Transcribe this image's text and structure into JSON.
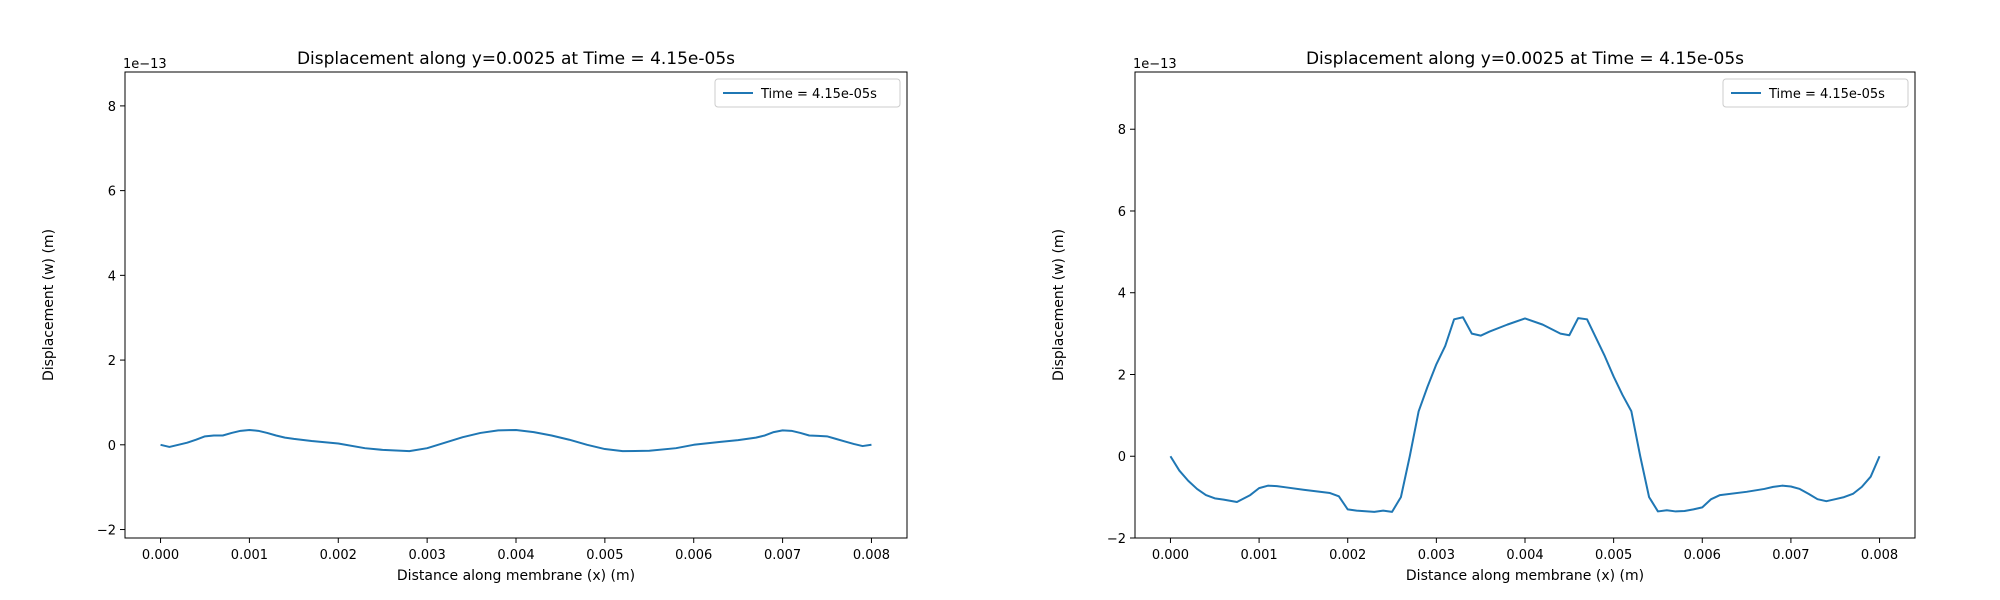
{
  "chart_data": [
    {
      "type": "line",
      "title": "Displacement along y=0.0025 at Time = 4.15e-05s",
      "xlabel": "Distance along membrane (x) (m)",
      "ylabel": "Displacement (w) (m)",
      "y_offset_text": "1e−13",
      "xlim": [
        -0.0004,
        0.0084
      ],
      "ylim": [
        -2.2,
        8.8
      ],
      "xticks": [
        0.0,
        0.001,
        0.002,
        0.003,
        0.004,
        0.005,
        0.006,
        0.007,
        0.008
      ],
      "xtick_labels": [
        "0.000",
        "0.001",
        "0.002",
        "0.003",
        "0.004",
        "0.005",
        "0.006",
        "0.007",
        "0.008"
      ],
      "yticks": [
        -2,
        0,
        2,
        4,
        6,
        8
      ],
      "ytick_labels": [
        "−2",
        "0",
        "2",
        "4",
        "6",
        "8"
      ],
      "grid": false,
      "legend_position": "top-right",
      "series": [
        {
          "name": "Time = 4.15e-05s",
          "color": "#1f77b4",
          "x": [
            0.0,
            0.0001,
            0.0002,
            0.0003,
            0.0004,
            0.0005,
            0.0006,
            0.0007,
            0.0008,
            0.0009,
            0.001,
            0.0011,
            0.0012,
            0.0013,
            0.0014,
            0.0015,
            0.0017,
            0.002,
            0.0023,
            0.0025,
            0.0028,
            0.003,
            0.0032,
            0.0034,
            0.0036,
            0.0038,
            0.004,
            0.0042,
            0.0044,
            0.0046,
            0.0048,
            0.005,
            0.0052,
            0.0055,
            0.0058,
            0.006,
            0.0063,
            0.0065,
            0.0066,
            0.0067,
            0.0068,
            0.0069,
            0.007,
            0.0071,
            0.0072,
            0.0073,
            0.0074,
            0.0075,
            0.0076,
            0.0077,
            0.0078,
            0.0079,
            0.008
          ],
          "y": [
            0.0,
            -0.05,
            0.0,
            0.05,
            0.12,
            0.2,
            0.22,
            0.22,
            0.28,
            0.33,
            0.35,
            0.33,
            0.28,
            0.22,
            0.17,
            0.14,
            0.09,
            0.03,
            -0.08,
            -0.12,
            -0.15,
            -0.08,
            0.05,
            0.18,
            0.28,
            0.34,
            0.35,
            0.3,
            0.22,
            0.12,
            0.0,
            -0.1,
            -0.15,
            -0.14,
            -0.08,
            0.0,
            0.07,
            0.11,
            0.14,
            0.17,
            0.22,
            0.3,
            0.34,
            0.33,
            0.28,
            0.22,
            0.21,
            0.2,
            0.14,
            0.08,
            0.02,
            -0.03,
            0.0
          ]
        }
      ]
    },
    {
      "type": "line",
      "title": "Displacement along y=0.0025 at Time = 4.15e-05s",
      "xlabel": "Distance along membrane (x) (m)",
      "ylabel": "Displacement (w) (m)",
      "y_offset_text": "1e−13",
      "xlim": [
        -0.0004,
        0.0084
      ],
      "ylim": [
        -2.0,
        9.4
      ],
      "xticks": [
        0.0,
        0.001,
        0.002,
        0.003,
        0.004,
        0.005,
        0.006,
        0.007,
        0.008
      ],
      "xtick_labels": [
        "0.000",
        "0.001",
        "0.002",
        "0.003",
        "0.004",
        "0.005",
        "0.006",
        "0.007",
        "0.008"
      ],
      "yticks": [
        -2,
        0,
        2,
        4,
        6,
        8
      ],
      "ytick_labels": [
        "−2",
        "0",
        "2",
        "4",
        "6",
        "8"
      ],
      "grid": false,
      "legend_position": "top-right",
      "series": [
        {
          "name": "Time = 4.15e-05s",
          "color": "#1f77b4",
          "x": [
            0.0,
            0.0001,
            0.0002,
            0.0003,
            0.0004,
            0.0005,
            0.0006,
            0.00075,
            0.0009,
            0.001,
            0.0011,
            0.0012,
            0.0013,
            0.0015,
            0.0018,
            0.0019,
            0.002,
            0.0021,
            0.0023,
            0.0024,
            0.0025,
            0.0026,
            0.0027,
            0.0028,
            0.0029,
            0.003,
            0.0031,
            0.0032,
            0.0033,
            0.0034,
            0.0035,
            0.0036,
            0.0038,
            0.004,
            0.0042,
            0.0044,
            0.0045,
            0.0046,
            0.0047,
            0.0048,
            0.0049,
            0.005,
            0.0051,
            0.0052,
            0.0053,
            0.0054,
            0.0055,
            0.0056,
            0.0057,
            0.0058,
            0.0059,
            0.006,
            0.0061,
            0.0062,
            0.0065,
            0.0067,
            0.0068,
            0.0069,
            0.007,
            0.0071,
            0.0072,
            0.0073,
            0.0074,
            0.0075,
            0.0076,
            0.0077,
            0.0078,
            0.0079,
            0.008
          ],
          "y": [
            0.0,
            -0.35,
            -0.6,
            -0.8,
            -0.95,
            -1.03,
            -1.06,
            -1.12,
            -0.95,
            -0.78,
            -0.72,
            -0.73,
            -0.76,
            -0.82,
            -0.9,
            -0.98,
            -1.3,
            -1.33,
            -1.36,
            -1.33,
            -1.36,
            -1.0,
            0.0,
            1.1,
            1.7,
            2.25,
            2.7,
            3.35,
            3.4,
            3.0,
            2.95,
            3.05,
            3.22,
            3.37,
            3.22,
            3.0,
            2.96,
            3.38,
            3.35,
            2.9,
            2.45,
            1.95,
            1.5,
            1.1,
            0.0,
            -1.0,
            -1.35,
            -1.32,
            -1.35,
            -1.34,
            -1.3,
            -1.25,
            -1.05,
            -0.95,
            -0.87,
            -0.8,
            -0.75,
            -0.72,
            -0.74,
            -0.8,
            -0.92,
            -1.05,
            -1.1,
            -1.05,
            -1.0,
            -0.92,
            -0.75,
            -0.5,
            0.0
          ]
        }
      ]
    }
  ]
}
